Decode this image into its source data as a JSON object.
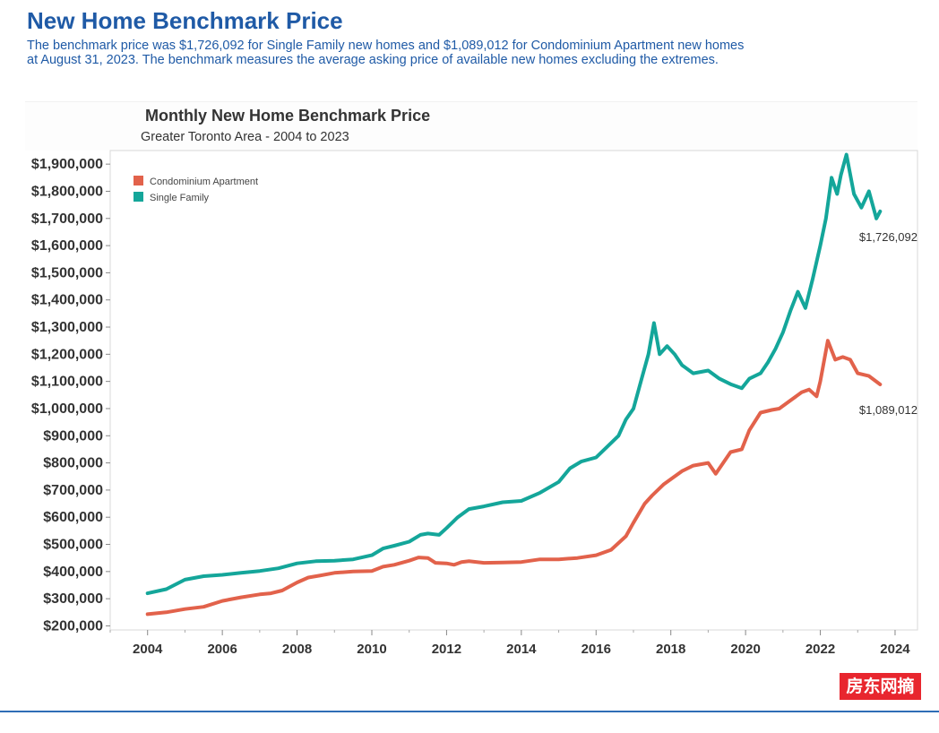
{
  "header": {
    "title": "New Home Benchmark Price",
    "description_line1": "The benchmark price was $1,726,092 for Single Family new homes and $1,089,012 for Condominium Apartment new homes",
    "description_line2": "at  August 31, 2023. The benchmark measures the average asking price of available new homes excluding the extremes."
  },
  "watermark": "房东网摘",
  "chart_data": {
    "type": "line",
    "title": "Monthly New Home Benchmark Price",
    "subtitle": "Greater Toronto Area - 2004 to 2023",
    "xlabel": "",
    "ylabel": "",
    "xlim": [
      2003.0,
      2024.6
    ],
    "ylim": [
      185000,
      1950000
    ],
    "x_ticks": [
      2004,
      2006,
      2008,
      2010,
      2012,
      2014,
      2016,
      2018,
      2020,
      2022,
      2024
    ],
    "y_ticks": [
      200000,
      300000,
      400000,
      500000,
      600000,
      700000,
      800000,
      900000,
      1000000,
      1100000,
      1200000,
      1300000,
      1400000,
      1500000,
      1600000,
      1700000,
      1800000,
      1900000
    ],
    "y_tick_labels": [
      "$200,000",
      "$300,000",
      "$400,000",
      "$500,000",
      "$600,000",
      "$700,000",
      "$800,000",
      "$900,000",
      "$1,000,000",
      "$1,100,000",
      "$1,200,000",
      "$1,300,000",
      "$1,400,000",
      "$1,500,000",
      "$1,600,000",
      "$1,700,000",
      "$1,800,000",
      "$1,900,000"
    ],
    "legend_position": "top-left",
    "grid": false,
    "series": [
      {
        "name": "Condominium Apartment",
        "color": "#e2624b",
        "end_label": "$1,089,012",
        "x": [
          2004.0,
          2004.5,
          2005.0,
          2005.5,
          2006.0,
          2006.5,
          2007.0,
          2007.3,
          2007.6,
          2008.0,
          2008.3,
          2008.6,
          2009.0,
          2009.5,
          2010.0,
          2010.3,
          2010.6,
          2011.0,
          2011.25,
          2011.5,
          2011.7,
          2012.0,
          2012.2,
          2012.4,
          2012.6,
          2013.0,
          2013.5,
          2014.0,
          2014.5,
          2015.0,
          2015.5,
          2016.0,
          2016.4,
          2016.8,
          2017.0,
          2017.3,
          2017.5,
          2017.8,
          2018.0,
          2018.3,
          2018.6,
          2019.0,
          2019.2,
          2019.4,
          2019.6,
          2019.9,
          2020.1,
          2020.4,
          2020.7,
          2020.9,
          2021.2,
          2021.5,
          2021.7,
          2021.9,
          2022.0,
          2022.2,
          2022.4,
          2022.6,
          2022.8,
          2023.0,
          2023.3,
          2023.6
        ],
        "values": [
          243000,
          250000,
          262000,
          270000,
          292000,
          305000,
          316000,
          320000,
          330000,
          360000,
          378000,
          385000,
          395000,
          400000,
          402000,
          418000,
          425000,
          440000,
          452000,
          450000,
          432000,
          430000,
          425000,
          435000,
          438000,
          432000,
          433000,
          435000,
          445000,
          445000,
          450000,
          460000,
          480000,
          530000,
          580000,
          650000,
          680000,
          720000,
          740000,
          770000,
          790000,
          800000,
          760000,
          800000,
          840000,
          850000,
          920000,
          985000,
          995000,
          1000000,
          1030000,
          1060000,
          1070000,
          1045000,
          1100000,
          1250000,
          1180000,
          1190000,
          1180000,
          1130000,
          1120000,
          1089012
        ]
      },
      {
        "name": "Single Family",
        "color": "#14a69a",
        "end_label": "$1,726,092",
        "x": [
          2004.0,
          2004.5,
          2005.0,
          2005.5,
          2006.0,
          2006.5,
          2007.0,
          2007.5,
          2008.0,
          2008.5,
          2009.0,
          2009.5,
          2010.0,
          2010.3,
          2010.6,
          2011.0,
          2011.3,
          2011.5,
          2011.8,
          2012.0,
          2012.3,
          2012.6,
          2013.0,
          2013.5,
          2014.0,
          2014.5,
          2015.0,
          2015.3,
          2015.6,
          2016.0,
          2016.3,
          2016.6,
          2016.8,
          2017.0,
          2017.2,
          2017.4,
          2017.55,
          2017.7,
          2017.9,
          2018.1,
          2018.3,
          2018.6,
          2019.0,
          2019.3,
          2019.6,
          2019.9,
          2020.1,
          2020.4,
          2020.6,
          2020.8,
          2021.0,
          2021.2,
          2021.4,
          2021.6,
          2021.8,
          2022.0,
          2022.15,
          2022.3,
          2022.45,
          2022.55,
          2022.7,
          2022.9,
          2023.1,
          2023.3,
          2023.5,
          2023.6
        ],
        "values": [
          320000,
          335000,
          370000,
          383000,
          388000,
          395000,
          402000,
          412000,
          430000,
          438000,
          440000,
          445000,
          460000,
          485000,
          495000,
          510000,
          535000,
          540000,
          535000,
          560000,
          600000,
          630000,
          640000,
          655000,
          660000,
          690000,
          730000,
          780000,
          805000,
          820000,
          860000,
          900000,
          960000,
          1000000,
          1100000,
          1200000,
          1315000,
          1200000,
          1230000,
          1200000,
          1160000,
          1130000,
          1140000,
          1110000,
          1090000,
          1075000,
          1110000,
          1130000,
          1170000,
          1220000,
          1280000,
          1360000,
          1430000,
          1370000,
          1480000,
          1600000,
          1700000,
          1850000,
          1790000,
          1860000,
          1935000,
          1790000,
          1740000,
          1800000,
          1700000,
          1726092
        ]
      }
    ]
  }
}
